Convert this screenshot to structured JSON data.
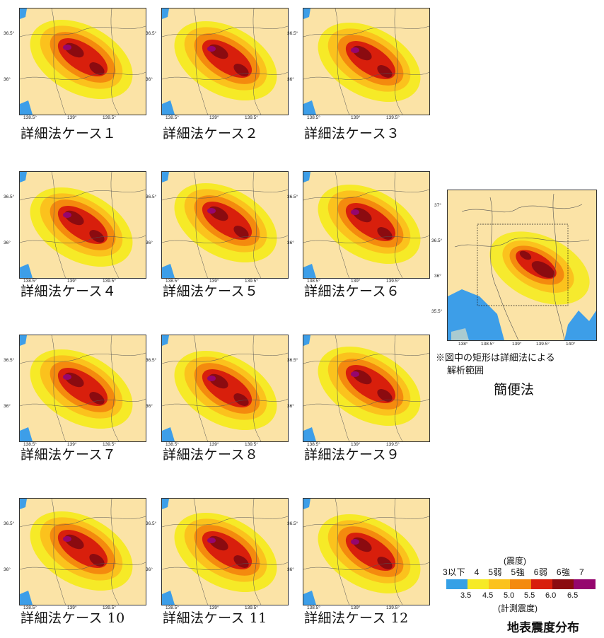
{
  "maps": [
    {
      "caption": "詳細法ケース１"
    },
    {
      "caption": "詳細法ケース２"
    },
    {
      "caption": "詳細法ケース３"
    },
    {
      "caption": "詳細法ケース４"
    },
    {
      "caption": "詳細法ケース５"
    },
    {
      "caption": "詳細法ケース６"
    },
    {
      "caption": "詳細法ケース７"
    },
    {
      "caption": "詳細法ケース８"
    },
    {
      "caption": "詳細法ケース９"
    },
    {
      "caption": "詳細法ケース 10"
    },
    {
      "caption": "詳細法ケース 11"
    },
    {
      "caption": "詳細法ケース 12"
    }
  ],
  "small_ticks": {
    "lat": [
      "36.5°",
      "36°"
    ],
    "lon": [
      "138.5°",
      "139°",
      "139.5°"
    ]
  },
  "simple_map": {
    "caption": "簡便法",
    "note_line1": "※図中の矩形は詳細法による",
    "note_line2": "解析範囲",
    "lat": [
      "37°",
      "36.5°",
      "36°",
      "35.5°"
    ],
    "lon": [
      "138°",
      "138.5°",
      "139°",
      "139.5°",
      "140°"
    ]
  },
  "legend": {
    "top_label": "(震度)",
    "intensity_classes": "3以下　4　5弱　5強　6弱　6強　7",
    "values": [
      "3.5",
      "4.5",
      "5.0",
      "5.5",
      "6.0",
      "6.5"
    ],
    "bottom_label": "(計測震度)",
    "colors": [
      "#35a0e6",
      "#f6ea27",
      "#fbc21d",
      "#f48a0e",
      "#d81f0c",
      "#8b0b10",
      "#95066e"
    ],
    "title": "地表震度分布"
  }
}
